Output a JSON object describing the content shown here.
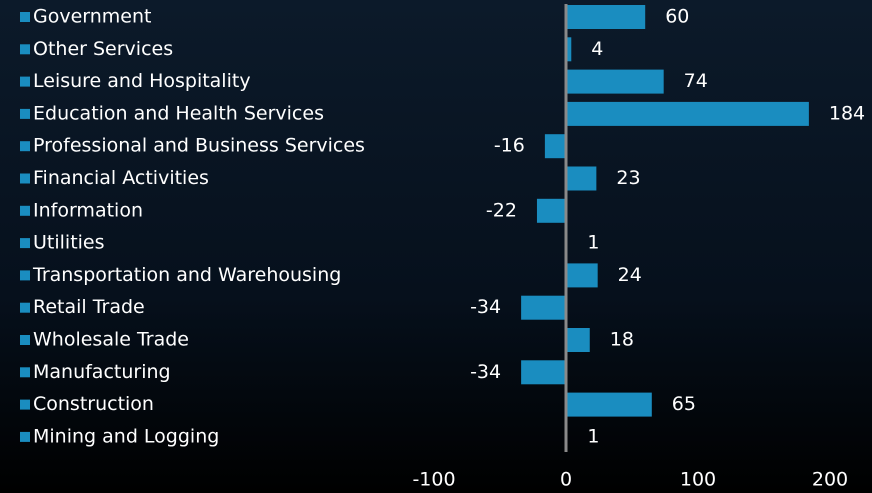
{
  "chart_data": {
    "type": "bar",
    "orientation": "horizontal",
    "categories": [
      "Government",
      "Other Services",
      "Leisure and Hospitality",
      "Education and Health Services",
      "Professional and Business Services",
      "Financial Activities",
      "Information",
      "Utilities",
      "Transportation and Warehousing",
      "Retail Trade",
      "Wholesale Trade",
      "Manufacturing",
      "Construction",
      "Mining and Logging"
    ],
    "values": [
      60,
      4,
      74,
      184,
      -16,
      23,
      -22,
      1,
      24,
      -34,
      18,
      -34,
      65,
      1
    ],
    "color": "#1a8dc0",
    "xlim": [
      -100,
      200
    ],
    "xticks": [
      -100,
      0,
      100,
      200
    ],
    "grid": false
  }
}
